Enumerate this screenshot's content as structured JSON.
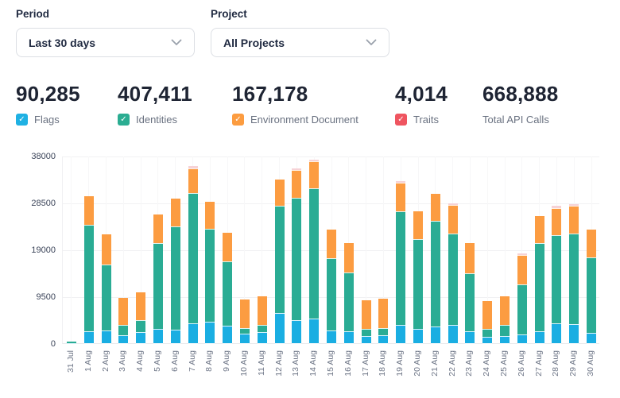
{
  "filters": {
    "period": {
      "label": "Period",
      "value": "Last 30 days"
    },
    "project": {
      "label": "Project",
      "value": "All Projects"
    }
  },
  "stats": [
    {
      "value": "90,285",
      "label": "Flags",
      "color": "#1fb1e3",
      "checkbox": true
    },
    {
      "value": "407,411",
      "label": "Identities",
      "color": "#2bad92",
      "checkbox": true
    },
    {
      "value": "167,178",
      "label": "Environment Document",
      "color": "#fc9c40",
      "checkbox": true
    },
    {
      "value": "4,014",
      "label": "Traits",
      "color": "#ef5560",
      "checkbox": true
    },
    {
      "value": "668,888",
      "label": "Total API Calls",
      "checkbox": false
    }
  ],
  "checkmark_glyph": "✓",
  "chart_data": {
    "type": "bar",
    "stacked": true,
    "title": "",
    "xlabel": "",
    "ylabel": "",
    "ylim": [
      0,
      38000
    ],
    "yticks": [
      0,
      9500,
      19000,
      28500,
      38000
    ],
    "grid": true,
    "legend_position": "via stat checkboxes above chart",
    "categories": [
      "31 Jul",
      "1 Aug",
      "2 Aug",
      "3 Aug",
      "4 Aug",
      "5 Aug",
      "6 Aug",
      "7 Aug",
      "8 Aug",
      "9 Aug",
      "10 Aug",
      "11 Aug",
      "12 Aug",
      "13 Aug",
      "14 Aug",
      "15 Aug",
      "16 Aug",
      "17 Aug",
      "18 Aug",
      "19 Aug",
      "20 Aug",
      "21 Aug",
      "22 Aug",
      "23 Aug",
      "24 Aug",
      "25 Aug",
      "26 Aug",
      "27 Aug",
      "28 Aug",
      "29 Aug",
      "30 Aug"
    ],
    "series": [
      {
        "name": "Flags",
        "color": "#1aaee2",
        "values": [
          30,
          2400,
          2600,
          1550,
          2250,
          2900,
          2700,
          4000,
          4300,
          3550,
          1900,
          2250,
          6050,
          4750,
          5000,
          2600,
          2400,
          1500,
          1650,
          3750,
          2900,
          3450,
          3750,
          2450,
          1350,
          1500,
          1800,
          2400,
          3950,
          3850,
          2150
        ]
      },
      {
        "name": "Identities",
        "color": "#2aac94",
        "values": [
          250,
          21550,
          13400,
          2100,
          2450,
          17450,
          20900,
          26400,
          18950,
          13050,
          1100,
          1500,
          21850,
          24750,
          26400,
          14650,
          11900,
          1400,
          1450,
          22950,
          18200,
          21350,
          18450,
          11800,
          1600,
          2150,
          10150,
          17900,
          18000,
          18300,
          15300
        ]
      },
      {
        "name": "Environment Document",
        "color": "#fc9c41",
        "values": [
          0,
          5900,
          6100,
          5550,
          5650,
          5750,
          5650,
          5100,
          5350,
          5750,
          5850,
          5750,
          5350,
          5650,
          5500,
          5850,
          6000,
          5800,
          5850,
          5750,
          5700,
          5500,
          5800,
          6050,
          5600,
          5800,
          6000,
          5500,
          5500,
          5700,
          5500
        ]
      },
      {
        "name": "Traits",
        "color": "#f6d2d6",
        "values": [
          0,
          0,
          0,
          0,
          0,
          0,
          0,
          330,
          0,
          0,
          0,
          0,
          0,
          270,
          200,
          0,
          0,
          0,
          0,
          280,
          0,
          0,
          150,
          0,
          0,
          0,
          180,
          0,
          400,
          150,
          0
        ]
      }
    ]
  }
}
